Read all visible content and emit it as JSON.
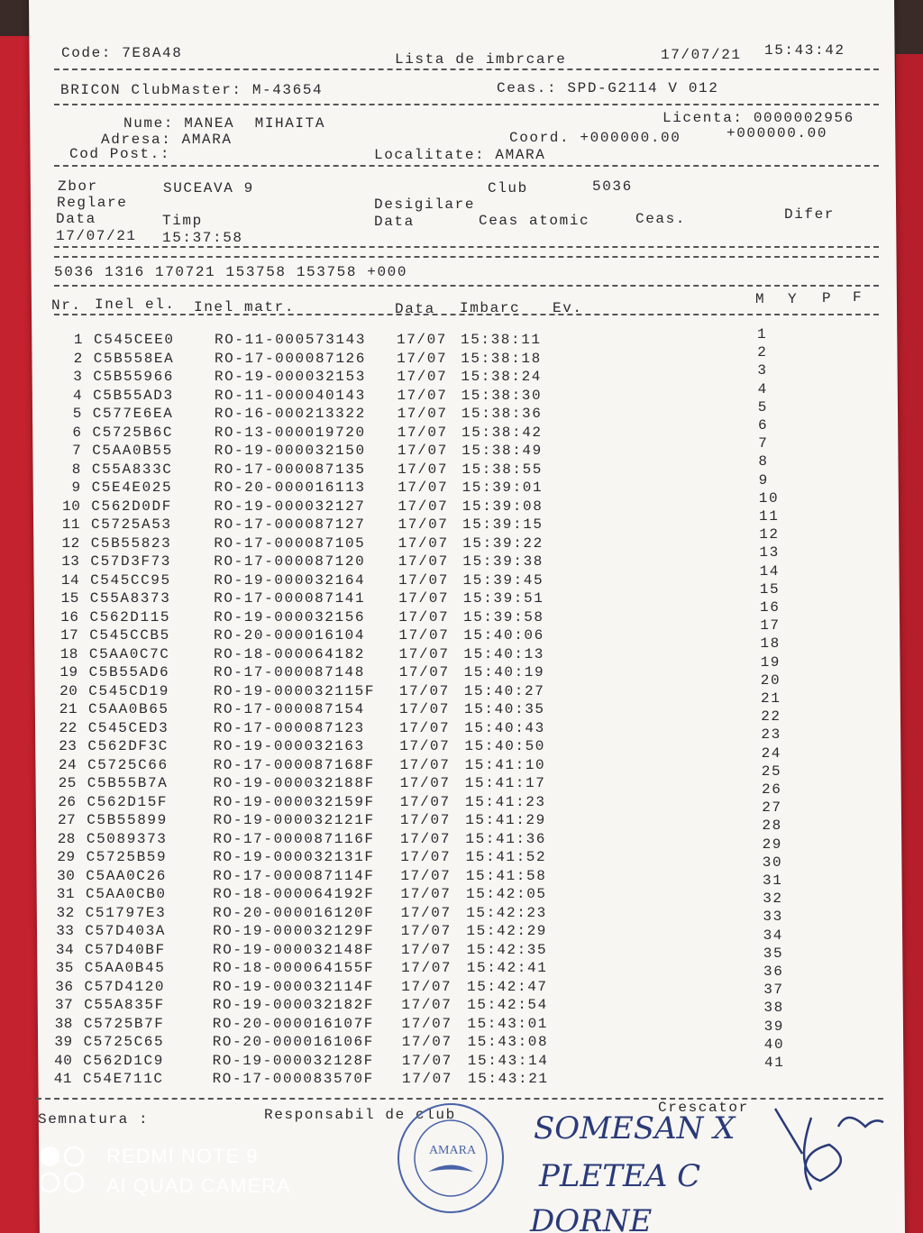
{
  "header": {
    "code": "Code: 7E8A48",
    "title": "Lista de imbrcare",
    "date": "17/07/21",
    "time": "15:43:42",
    "club_master": "BRICON ClubMaster: M-43654",
    "ceas": "Ceas.: SPD-G2114 V 012",
    "nume": "Nume: MANEA  MIHAITA",
    "adresa": "Adresa: AMARA",
    "cod_post": "Cod Post.:",
    "licenta": "Licenta: 0000002956",
    "coord": "Coord. +000000.00",
    "coord2": "+000000.00",
    "localitate": "Localitate: AMARA"
  },
  "flight": {
    "zbor": "Zbor",
    "zbor_value": "SUCEAVA 9",
    "club": "Club",
    "club_value": "5036",
    "reglare": "Reglare",
    "desigilare": "Desigilare",
    "data": "Data",
    "timp": "Timp",
    "data2": "Data",
    "ceas_atomic": "Ceas atomic",
    "ceas": "Ceas.",
    "difer": "Difer",
    "reglare_date": "17/07/21",
    "reglare_time": "15:37:58",
    "code_line": "5036 1316 170721 153758 153758 +000"
  },
  "table": {
    "columns": [
      "Nr.",
      "Inel el.",
      "Inel matr.",
      "Data",
      "Imbarc",
      "Ev.",
      "M",
      "Y",
      "P",
      "F"
    ],
    "rows": [
      [
        1,
        "C545CEE0",
        "RO-11-000573143",
        "17/07",
        "15:38:11",
        1
      ],
      [
        2,
        "C5B558EA",
        "RO-17-000087126",
        "17/07",
        "15:38:18",
        2
      ],
      [
        3,
        "C5B55966",
        "RO-19-000032153",
        "17/07",
        "15:38:24",
        3
      ],
      [
        4,
        "C5B55AD3",
        "RO-11-000040143",
        "17/07",
        "15:38:30",
        4
      ],
      [
        5,
        "C577E6EA",
        "RO-16-000213322",
        "17/07",
        "15:38:36",
        5
      ],
      [
        6,
        "C5725B6C",
        "RO-13-000019720",
        "17/07",
        "15:38:42",
        6
      ],
      [
        7,
        "C5AA0B55",
        "RO-19-000032150",
        "17/07",
        "15:38:49",
        7
      ],
      [
        8,
        "C55A833C",
        "RO-17-000087135",
        "17/07",
        "15:38:55",
        8
      ],
      [
        9,
        "C5E4E025",
        "RO-20-000016113",
        "17/07",
        "15:39:01",
        9
      ],
      [
        10,
        "C562D0DF",
        "RO-19-000032127",
        "17/07",
        "15:39:08",
        10
      ],
      [
        11,
        "C5725A53",
        "RO-17-000087127",
        "17/07",
        "15:39:15",
        11
      ],
      [
        12,
        "C5B55823",
        "RO-17-000087105",
        "17/07",
        "15:39:22",
        12
      ],
      [
        13,
        "C57D3F73",
        "RO-17-000087120",
        "17/07",
        "15:39:38",
        13
      ],
      [
        14,
        "C545CC95",
        "RO-19-000032164",
        "17/07",
        "15:39:45",
        14
      ],
      [
        15,
        "C55A8373",
        "RO-17-000087141",
        "17/07",
        "15:39:51",
        15
      ],
      [
        16,
        "C562D115",
        "RO-19-000032156",
        "17/07",
        "15:39:58",
        16
      ],
      [
        17,
        "C545CCB5",
        "RO-20-000016104",
        "17/07",
        "15:40:06",
        17
      ],
      [
        18,
        "C5AA0C7C",
        "RO-18-000064182",
        "17/07",
        "15:40:13",
        18
      ],
      [
        19,
        "C5B55AD6",
        "RO-17-000087148",
        "17/07",
        "15:40:19",
        19
      ],
      [
        20,
        "C545CD19",
        "RO-19-000032115F",
        "17/07",
        "15:40:27",
        20
      ],
      [
        21,
        "C5AA0B65",
        "RO-17-000087154",
        "17/07",
        "15:40:35",
        21
      ],
      [
        22,
        "C545CED3",
        "RO-17-000087123",
        "17/07",
        "15:40:43",
        22
      ],
      [
        23,
        "C562DF3C",
        "RO-19-000032163",
        "17/07",
        "15:40:50",
        23
      ],
      [
        24,
        "C5725C66",
        "RO-17-000087168F",
        "17/07",
        "15:41:10",
        24
      ],
      [
        25,
        "C5B55B7A",
        "RO-19-000032188F",
        "17/07",
        "15:41:17",
        25
      ],
      [
        26,
        "C562D15F",
        "RO-19-000032159F",
        "17/07",
        "15:41:23",
        26
      ],
      [
        27,
        "C5B55899",
        "RO-19-000032121F",
        "17/07",
        "15:41:29",
        27
      ],
      [
        28,
        "C5089373",
        "RO-17-000087116F",
        "17/07",
        "15:41:36",
        28
      ],
      [
        29,
        "C5725B59",
        "RO-19-000032131F",
        "17/07",
        "15:41:52",
        29
      ],
      [
        30,
        "C5AA0C26",
        "RO-17-000087114F",
        "17/07",
        "15:41:58",
        30
      ],
      [
        31,
        "C5AA0CB0",
        "RO-18-000064192F",
        "17/07",
        "15:42:05",
        31
      ],
      [
        32,
        "C51797E3",
        "RO-20-000016120F",
        "17/07",
        "15:42:23",
        32
      ],
      [
        33,
        "C57D403A",
        "RO-19-000032129F",
        "17/07",
        "15:42:29",
        33
      ],
      [
        34,
        "C57D40BF",
        "RO-19-000032148F",
        "17/07",
        "15:42:35",
        34
      ],
      [
        35,
        "C5AA0B45",
        "RO-18-000064155F",
        "17/07",
        "15:42:41",
        35
      ],
      [
        36,
        "C57D4120",
        "RO-19-000032114F",
        "17/07",
        "15:42:47",
        36
      ],
      [
        37,
        "C55A835F",
        "RO-19-000032182F",
        "17/07",
        "15:42:54",
        37
      ],
      [
        38,
        "C5725B7F",
        "RO-20-000016107F",
        "17/07",
        "15:43:01",
        38
      ],
      [
        39,
        "C5725C65",
        "RO-20-000016106F",
        "17/07",
        "15:43:08",
        39
      ],
      [
        40,
        "C562D1C9",
        "RO-19-000032128F",
        "17/07",
        "15:43:14",
        40
      ],
      [
        41,
        "C54E711C",
        "RO-17-000083570F",
        "17/07",
        "15:43:21",
        41
      ]
    ]
  },
  "footer": {
    "semnatura": "Semnatura :",
    "responsabil": "Responsabil de club",
    "crescator": "Crescator",
    "signatures": [
      "SOMESAN X",
      "PLETEA C",
      "DORNE"
    ],
    "stamp": "AMARA"
  },
  "camera": {
    "model": "REDMI NOTE 9",
    "caption": "AI QUAD CAMERA"
  }
}
